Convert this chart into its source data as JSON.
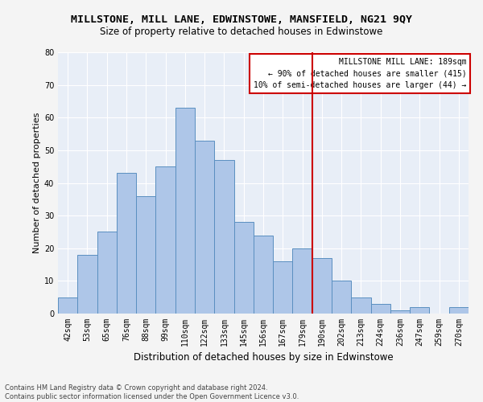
{
  "title1": "MILLSTONE, MILL LANE, EDWINSTOWE, MANSFIELD, NG21 9QY",
  "title2": "Size of property relative to detached houses in Edwinstowe",
  "xlabel": "Distribution of detached houses by size in Edwinstowe",
  "ylabel": "Number of detached properties",
  "footnote": "Contains HM Land Registry data © Crown copyright and database right 2024.\nContains public sector information licensed under the Open Government Licence v3.0.",
  "categories": [
    "42sqm",
    "53sqm",
    "65sqm",
    "76sqm",
    "88sqm",
    "99sqm",
    "110sqm",
    "122sqm",
    "133sqm",
    "145sqm",
    "156sqm",
    "167sqm",
    "179sqm",
    "190sqm",
    "202sqm",
    "213sqm",
    "224sqm",
    "236sqm",
    "247sqm",
    "259sqm",
    "270sqm"
  ],
  "values": [
    5,
    18,
    25,
    43,
    36,
    45,
    63,
    53,
    47,
    28,
    24,
    16,
    20,
    17,
    10,
    5,
    3,
    1,
    2,
    0,
    2
  ],
  "bar_color": "#aec6e8",
  "bar_edge_color": "#5a8fc0",
  "vline_x": 13.0,
  "vline_color": "#cc0000",
  "annotation_title": "MILLSTONE MILL LANE: 189sqm",
  "annotation_line1": "← 90% of detached houses are smaller (415)",
  "annotation_line2": "10% of semi-detached houses are larger (44) →",
  "annotation_box_color": "#ffffff",
  "annotation_border_color": "#cc0000",
  "ylim": [
    0,
    80
  ],
  "yticks": [
    0,
    10,
    20,
    30,
    40,
    50,
    60,
    70,
    80
  ],
  "background_color": "#e8eef7",
  "fig_background_color": "#f4f4f4",
  "grid_color": "#ffffff",
  "title1_fontsize": 9.5,
  "title2_fontsize": 8.5,
  "xlabel_fontsize": 8.5,
  "ylabel_fontsize": 8,
  "footnote_fontsize": 6,
  "tick_fontsize": 7,
  "ann_fontsize": 7
}
